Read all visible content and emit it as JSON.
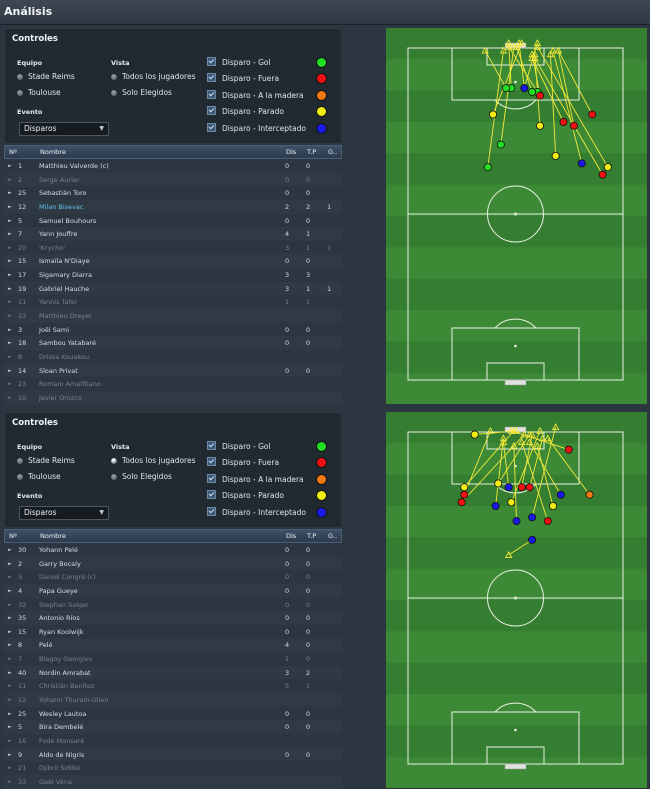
{
  "page": {
    "title": "Análisis"
  },
  "labels": {
    "controls_title": "Controles",
    "equipo": "Equipo",
    "vista": "Vista",
    "evento": "Evento",
    "vista_options": [
      "Todos los jugadores",
      "Solo Elegidos"
    ],
    "evento_value": "Disparos",
    "legend": [
      {
        "label": "Disparo - Gol",
        "color": "#22dd22"
      },
      {
        "label": "Disparo - Fuera",
        "color": "#ee1111"
      },
      {
        "label": "Disparo - A la madera",
        "color": "#f07a10"
      },
      {
        "label": "Disparo - Parado",
        "color": "#f2ee12"
      },
      {
        "label": "Disparo - Interceptado",
        "color": "#1a1ae6"
      }
    ],
    "columns": [
      "Nº",
      "Nombre",
      "Dis",
      "T.P",
      "G.."
    ]
  },
  "panels": [
    {
      "teams": [
        "Stade Reims",
        "Toulouse"
      ],
      "players": [
        {
          "num": "1",
          "name": "Matthieu Valverde (c)",
          "dis": "0",
          "tp": "0",
          "g": "",
          "dim": false,
          "hl": false
        },
        {
          "num": "2",
          "name": "Serge Aurier",
          "dis": "0",
          "tp": "0",
          "g": "",
          "dim": true,
          "hl": false
        },
        {
          "num": "25",
          "name": "Sebastián Toro",
          "dis": "0",
          "tp": "0",
          "g": "",
          "dim": false,
          "hl": false
        },
        {
          "num": "12",
          "name": "Milan Bisevac",
          "dis": "2",
          "tp": "2",
          "g": "1",
          "dim": false,
          "hl": true
        },
        {
          "num": "5",
          "name": "Samuel Bouhours",
          "dis": "0",
          "tp": "0",
          "g": "",
          "dim": false,
          "hl": false
        },
        {
          "num": "7",
          "name": "Yann Jouffre",
          "dis": "4",
          "tp": "1",
          "g": "",
          "dim": false,
          "hl": false
        },
        {
          "num": "20",
          "name": "'Krycho'",
          "dis": "3",
          "tp": "1",
          "g": "1",
          "dim": true,
          "hl": false
        },
        {
          "num": "15",
          "name": "Ismaïla N'Diaye",
          "dis": "0",
          "tp": "0",
          "g": "",
          "dim": false,
          "hl": false
        },
        {
          "num": "17",
          "name": "Sigamary Diarra",
          "dis": "3",
          "tp": "3",
          "g": "",
          "dim": false,
          "hl": false
        },
        {
          "num": "19",
          "name": "Gabriel Hauche",
          "dis": "3",
          "tp": "1",
          "g": "1",
          "dim": false,
          "hl": false
        },
        {
          "num": "11",
          "name": "Yannis Tafer",
          "dis": "1",
          "tp": "1",
          "g": "",
          "dim": true,
          "hl": false
        },
        {
          "num": "13",
          "name": "Matthieu Dreyer",
          "dis": "",
          "tp": "",
          "g": "",
          "dim": true,
          "hl": false
        },
        {
          "num": "3",
          "name": "Joël Sami",
          "dis": "0",
          "tp": "0",
          "g": "",
          "dim": false,
          "hl": false
        },
        {
          "num": "18",
          "name": "Sambou Yatabaré",
          "dis": "0",
          "tp": "0",
          "g": "",
          "dim": false,
          "hl": false
        },
        {
          "num": "8",
          "name": "Drissa Kouakou",
          "dis": "",
          "tp": "",
          "g": "",
          "dim": true,
          "hl": false
        },
        {
          "num": "14",
          "name": "Sloan Privat",
          "dis": "0",
          "tp": "0",
          "g": "",
          "dim": false,
          "hl": false
        },
        {
          "num": "23",
          "name": "Romain Amalfitano",
          "dis": "",
          "tp": "",
          "g": "",
          "dim": true,
          "hl": false
        },
        {
          "num": "10",
          "name": "Javier Orozco",
          "dis": "",
          "tp": "",
          "g": "",
          "dim": true,
          "hl": false
        }
      ],
      "shots": [
        {
          "from": [
            0.48,
            0.16
          ],
          "to": [
            0.47,
            0.04
          ],
          "type": "gol"
        },
        {
          "from": [
            0.58,
            0.17
          ],
          "to": [
            0.47,
            0.05
          ],
          "type": "gol"
        },
        {
          "from": [
            0.41,
            0.23
          ],
          "to": [
            0.52,
            0.04
          ],
          "type": "parado"
        },
        {
          "from": [
            0.53,
            0.16
          ],
          "to": [
            0.51,
            0.04
          ],
          "type": "parado"
        },
        {
          "from": [
            0.65,
            0.34
          ],
          "to": [
            0.63,
            0.07
          ],
          "type": "parado"
        },
        {
          "from": [
            0.85,
            0.37
          ],
          "to": [
            0.58,
            0.05
          ],
          "type": "parado"
        },
        {
          "from": [
            0.53,
            0.16
          ],
          "to": [
            0.58,
            0.04
          ],
          "type": "interceptado"
        },
        {
          "from": [
            0.75,
            0.36
          ],
          "to": [
            0.64,
            0.06
          ],
          "type": "interceptado"
        },
        {
          "from": [
            0.72,
            0.26
          ],
          "to": [
            0.66,
            0.06
          ],
          "type": "fuera"
        },
        {
          "from": [
            0.68,
            0.25
          ],
          "to": [
            0.56,
            0.08
          ],
          "type": "fuera"
        },
        {
          "from": [
            0.79,
            0.23
          ],
          "to": [
            0.66,
            0.06
          ],
          "type": "fuera"
        },
        {
          "from": [
            0.59,
            0.26
          ],
          "to": [
            0.57,
            0.07
          ],
          "type": "parado"
        },
        {
          "from": [
            0.46,
            0.16
          ],
          "to": [
            0.38,
            0.06
          ],
          "type": "gol"
        },
        {
          "from": [
            0.39,
            0.37
          ],
          "to": [
            0.45,
            0.06
          ],
          "type": "gol"
        },
        {
          "from": [
            0.56,
            0.17
          ],
          "to": [
            0.5,
            0.05
          ],
          "type": "gol"
        },
        {
          "from": [
            0.44,
            0.31
          ],
          "to": [
            0.49,
            0.05
          ],
          "type": "gol"
        },
        {
          "from": [
            0.59,
            0.18
          ],
          "to": [
            0.56,
            0.07
          ],
          "type": "fuera"
        },
        {
          "from": [
            0.83,
            0.39
          ],
          "to": [
            0.57,
            0.08
          ],
          "type": "fuera"
        }
      ]
    },
    {
      "teams": [
        "Stade Reims",
        "Toulouse"
      ],
      "players": [
        {
          "num": "30",
          "name": "Yohann Pelé",
          "dis": "0",
          "tp": "0",
          "g": "",
          "dim": false,
          "hl": false
        },
        {
          "num": "2",
          "name": "Garry Bocaly",
          "dis": "0",
          "tp": "0",
          "g": "",
          "dim": false,
          "hl": false
        },
        {
          "num": "3",
          "name": "Daniel Congré (c)",
          "dis": "0",
          "tp": "0",
          "g": "",
          "dim": true,
          "hl": false
        },
        {
          "num": "4",
          "name": "Papa Gueye",
          "dis": "0",
          "tp": "0",
          "g": "",
          "dim": false,
          "hl": false
        },
        {
          "num": "32",
          "name": "Stephan Salger",
          "dis": "0",
          "tp": "0",
          "g": "",
          "dim": true,
          "hl": false
        },
        {
          "num": "35",
          "name": "Antonio Ríos",
          "dis": "0",
          "tp": "0",
          "g": "",
          "dim": false,
          "hl": false
        },
        {
          "num": "15",
          "name": "Ryan Koolwijk",
          "dis": "0",
          "tp": "0",
          "g": "",
          "dim": false,
          "hl": false
        },
        {
          "num": "8",
          "name": "Pelé",
          "dis": "4",
          "tp": "0",
          "g": "",
          "dim": false,
          "hl": false
        },
        {
          "num": "7",
          "name": "Blagoy Georgiev",
          "dis": "1",
          "tp": "0",
          "g": "",
          "dim": true,
          "hl": false
        },
        {
          "num": "40",
          "name": "Nordin Amrabat",
          "dis": "3",
          "tp": "2",
          "g": "",
          "dim": false,
          "hl": false
        },
        {
          "num": "11",
          "name": "Christián Benítez",
          "dis": "5",
          "tp": "1",
          "g": "",
          "dim": true,
          "hl": false
        },
        {
          "num": "12",
          "name": "Yohann Thuram-Ulien",
          "dis": "",
          "tp": "",
          "g": "",
          "dim": true,
          "hl": false
        },
        {
          "num": "25",
          "name": "Wesley Lautoa",
          "dis": "0",
          "tp": "0",
          "g": "",
          "dim": false,
          "hl": false
        },
        {
          "num": "5",
          "name": "Bira Dembelé",
          "dis": "0",
          "tp": "0",
          "g": "",
          "dim": false,
          "hl": false
        },
        {
          "num": "16",
          "name": "Fodé Mansaré",
          "dis": "",
          "tp": "",
          "g": "",
          "dim": true,
          "hl": false
        },
        {
          "num": "9",
          "name": "Aldo de Nigris",
          "dis": "0",
          "tp": "0",
          "g": "",
          "dim": false,
          "hl": false
        },
        {
          "num": "21",
          "name": "Djibril Sidibé",
          "dis": "",
          "tp": "",
          "g": "",
          "dim": true,
          "hl": false
        },
        {
          "num": "33",
          "name": "Gaël Véna",
          "dis": "",
          "tp": "",
          "g": "",
          "dim": true,
          "hl": false
        }
      ],
      "shots": [
        {
          "from": [
            0.7,
            0.1
          ],
          "to": [
            0.48,
            0.05
          ],
          "type": "fuera"
        },
        {
          "from": [
            0.29,
            0.24
          ],
          "to": [
            0.53,
            0.06
          ],
          "type": "fuera"
        },
        {
          "from": [
            0.3,
            0.2
          ],
          "to": [
            0.49,
            0.05
          ],
          "type": "parado"
        },
        {
          "from": [
            0.34,
            0.06
          ],
          "to": [
            0.5,
            0.05
          ],
          "type": "parado"
        },
        {
          "from": [
            0.48,
            0.24
          ],
          "to": [
            0.59,
            0.05
          ],
          "type": "parado"
        },
        {
          "from": [
            0.43,
            0.19
          ],
          "to": [
            0.55,
            0.06
          ],
          "type": "parado"
        },
        {
          "from": [
            0.52,
            0.2
          ],
          "to": [
            0.56,
            0.06
          ],
          "type": "fuera"
        },
        {
          "from": [
            0.55,
            0.2
          ],
          "to": [
            0.6,
            0.07
          ],
          "type": "fuera"
        },
        {
          "from": [
            0.3,
            0.22
          ],
          "to": [
            0.4,
            0.05
          ],
          "type": "fuera"
        },
        {
          "from": [
            0.67,
            0.22
          ],
          "to": [
            0.55,
            0.08
          ],
          "type": "interceptado"
        },
        {
          "from": [
            0.56,
            0.28
          ],
          "to": [
            0.65,
            0.04
          ],
          "type": "interceptado"
        },
        {
          "from": [
            0.64,
            0.25
          ],
          "to": [
            0.58,
            0.09
          ],
          "type": "parado"
        },
        {
          "from": [
            0.78,
            0.22
          ],
          "to": [
            0.62,
            0.07
          ],
          "type": "madera"
        },
        {
          "from": [
            0.42,
            0.25
          ],
          "to": [
            0.45,
            0.07
          ],
          "type": "interceptado"
        },
        {
          "from": [
            0.62,
            0.29
          ],
          "to": [
            0.52,
            0.08
          ],
          "type": "fuera"
        },
        {
          "from": [
            0.5,
            0.29
          ],
          "to": [
            0.49,
            0.09
          ],
          "type": "interceptado"
        },
        {
          "from": [
            0.47,
            0.2
          ],
          "to": [
            0.45,
            0.08
          ],
          "type": "interceptado"
        },
        {
          "from": [
            0.56,
            0.34
          ],
          "to": [
            0.47,
            0.38
          ],
          "type": "interceptado"
        }
      ]
    }
  ]
}
